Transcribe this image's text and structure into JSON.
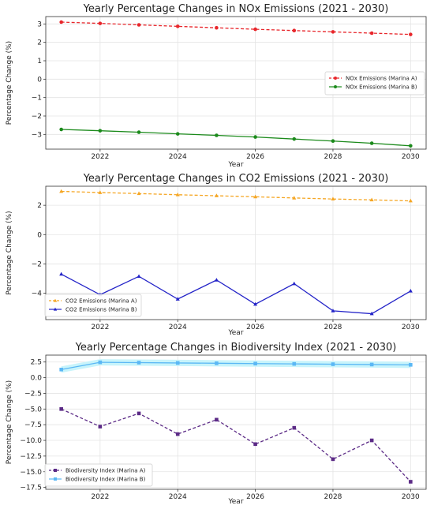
{
  "chart_data": [
    {
      "type": "line",
      "title": "Yearly Percentage Changes in NOx Emissions (2021 - 2030)",
      "xlabel": "Year",
      "ylabel": "Percentage Change (%)",
      "x": [
        2021,
        2022,
        2023,
        2024,
        2025,
        2026,
        2027,
        2028,
        2029,
        2030
      ],
      "xticks": [
        2022,
        2024,
        2026,
        2028,
        2030
      ],
      "yticks": [
        -3,
        -2,
        -1,
        0,
        1,
        2,
        3
      ],
      "ylim": [
        -3.8,
        3.4
      ],
      "xlim": [
        2020.6,
        2030.4
      ],
      "grid": true,
      "legend_position": "center-right",
      "series": [
        {
          "name": "NOx Emissions (Marina A)",
          "color": "#e8262b",
          "dash": "dashed",
          "marker": "circle",
          "values": [
            3.1,
            3.03,
            2.95,
            2.87,
            2.79,
            2.71,
            2.64,
            2.57,
            2.5,
            2.43
          ]
        },
        {
          "name": "NOx Emissions (Marina B)",
          "color": "#1b8a1b",
          "dash": "solid",
          "marker": "circle",
          "values": [
            -2.73,
            -2.8,
            -2.88,
            -2.97,
            -3.05,
            -3.14,
            -3.25,
            -3.36,
            -3.48,
            -3.62
          ]
        }
      ]
    },
    {
      "type": "line",
      "title": "Yearly Percentage Changes in CO2 Emissions (2021 - 2030)",
      "xlabel": "Year",
      "ylabel": "Percentage Change (%)",
      "x": [
        2021,
        2022,
        2023,
        2024,
        2025,
        2026,
        2027,
        2028,
        2029,
        2030
      ],
      "xticks": [
        2022,
        2024,
        2026,
        2028,
        2030
      ],
      "yticks": [
        -4,
        -2,
        0,
        2
      ],
      "ylim": [
        -5.8,
        3.3
      ],
      "xlim": [
        2020.6,
        2030.4
      ],
      "grid": true,
      "legend_position": "lower-left",
      "series": [
        {
          "name": "CO2 Emissions (Marina A)",
          "color": "#f5a623",
          "dash": "dashed",
          "marker": "triangle",
          "values": [
            2.95,
            2.87,
            2.8,
            2.72,
            2.65,
            2.58,
            2.5,
            2.43,
            2.37,
            2.3
          ]
        },
        {
          "name": "CO2 Emissions (Marina B)",
          "color": "#2424c8",
          "dash": "solid",
          "marker": "triangle",
          "values": [
            -2.7,
            -4.1,
            -2.85,
            -4.4,
            -3.1,
            -4.75,
            -3.35,
            -5.2,
            -5.4,
            -3.85
          ]
        }
      ]
    },
    {
      "type": "line",
      "title": "Yearly Percentage Changes in Biodiversity Index (2021 - 2030)",
      "xlabel": "Year",
      "ylabel": "Percentage Change (%)",
      "x": [
        2021,
        2022,
        2023,
        2024,
        2025,
        2026,
        2027,
        2028,
        2029,
        2030
      ],
      "xticks": [
        2022,
        2024,
        2026,
        2028,
        2030
      ],
      "yticks": [
        -17.5,
        -15.0,
        -12.5,
        -10.0,
        -7.5,
        -5.0,
        -2.5,
        0.0,
        2.5
      ],
      "ytick_labels": [
        "−17.5",
        "−15.0",
        "−12.5",
        "−10.0",
        "−7.5",
        "−5.0",
        "−2.5",
        "0.0",
        "2.5"
      ],
      "ylim": [
        -17.8,
        3.6
      ],
      "xlim": [
        2020.6,
        2030.4
      ],
      "grid": true,
      "legend_position": "lower-left",
      "series": [
        {
          "name": "Biodiversity Index (Marina A)",
          "color": "#5b2a86",
          "dash": "dashed",
          "marker": "square",
          "values": [
            -5.0,
            -7.8,
            -5.7,
            -9.0,
            -6.7,
            -10.6,
            -8.0,
            -13.0,
            -10.0,
            -16.6
          ]
        },
        {
          "name": "Biodiversity Index (Marina B)",
          "color": "#5bb8f5",
          "dash": "solid",
          "marker": "square",
          "band": "#c8f4fb",
          "values": [
            1.3,
            2.45,
            2.4,
            2.35,
            2.3,
            2.25,
            2.2,
            2.15,
            2.1,
            2.05
          ]
        }
      ]
    }
  ]
}
